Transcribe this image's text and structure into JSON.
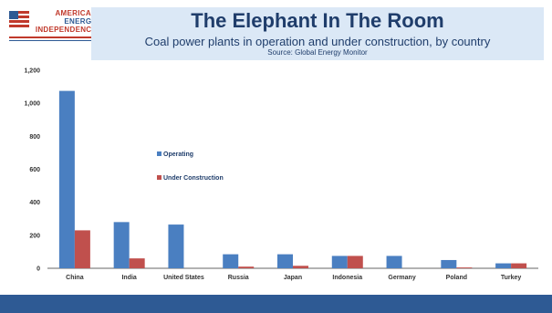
{
  "logo": {
    "line1": "AMERICAN",
    "line2": "ENERGY",
    "line3": "INDEPENDENCE"
  },
  "chart_data": {
    "type": "bar",
    "title": "The Elephant In The Room",
    "subtitle": "Coal power plants in operation and under construction, by country",
    "source": "Source: Global Energy Monitor",
    "categories": [
      "China",
      "India",
      "United States",
      "Russia",
      "Japan",
      "Indonesia",
      "Germany",
      "Poland",
      "Turkey"
    ],
    "series": [
      {
        "name": "Operating",
        "color": "#4a7fc1",
        "values": [
          1075,
          280,
          265,
          85,
          85,
          75,
          75,
          50,
          30
        ]
      },
      {
        "name": "Under Construction",
        "color": "#c0504d",
        "values": [
          230,
          60,
          0,
          10,
          15,
          75,
          0,
          5,
          30
        ]
      }
    ],
    "yticks": [
      "0",
      "200",
      "400",
      "600",
      "800",
      "1,000",
      "1,200"
    ],
    "ylim": [
      0,
      1200
    ],
    "grid": false,
    "legend_position": "center-left"
  }
}
